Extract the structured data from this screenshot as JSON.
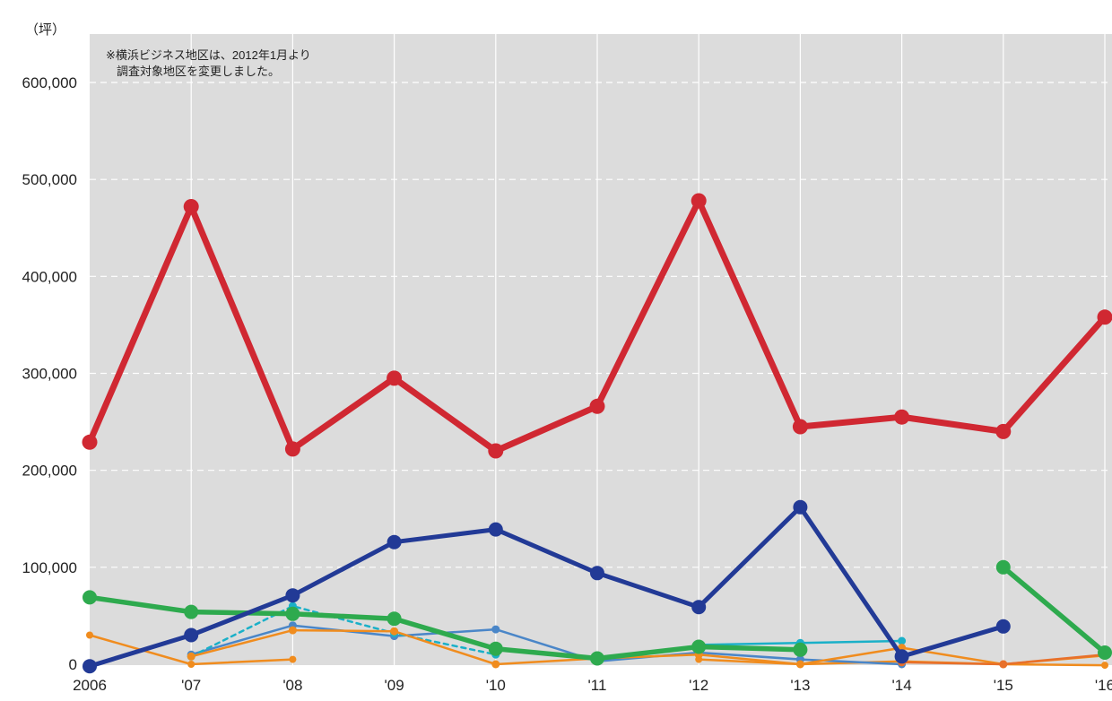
{
  "chart_data": {
    "type": "line",
    "unit_label": "（坪）",
    "note": [
      "※横浜ビジネス地区は、2012年1月より",
      "調査対象地区を変更しました。"
    ],
    "x_tick_labels": [
      "2006",
      "'07",
      "'08",
      "'09",
      "'10",
      "'11",
      "'12",
      "'13",
      "'14",
      "'15",
      "'16"
    ],
    "y_ticks": [
      0,
      100000,
      200000,
      300000,
      400000,
      500000,
      600000
    ],
    "y_tick_labels": [
      "0",
      "100,000",
      "200,000",
      "300,000",
      "400,000",
      "500,000",
      "600,000"
    ],
    "ylim": [
      0,
      600000
    ],
    "grid": true,
    "plot_background": "#dcdcdc",
    "series": [
      {
        "color": "#f08c1e",
        "width": 2.5,
        "marker": 4,
        "dashed": false,
        "values": [
          30000,
          0,
          5000,
          null,
          0,
          null,
          5000,
          0,
          3000,
          0,
          -1000
        ]
      },
      {
        "color": "#4a86c8",
        "width": 2.5,
        "marker": 4.5,
        "dashed": false,
        "values": [
          null,
          10000,
          40000,
          29000,
          36000,
          3000,
          12000,
          5000,
          0,
          null,
          null
        ]
      },
      {
        "color": "#1ab0c8",
        "width": 2.5,
        "marker": 4.5,
        "dashed": true,
        "values": [
          null,
          8000,
          60000,
          32000,
          10000,
          null,
          20000,
          null,
          null,
          null,
          null
        ]
      },
      {
        "color": "#1ab0c8",
        "width": 2.5,
        "marker": 4.5,
        "dashed": false,
        "values": [
          null,
          null,
          null,
          null,
          null,
          null,
          20000,
          22000,
          24000,
          null,
          null
        ]
      },
      {
        "color": "#f08c1e",
        "width": 2.5,
        "marker": 4.5,
        "dashed": false,
        "values": [
          null,
          8000,
          35000,
          34000,
          0,
          6000,
          10000,
          0,
          17000,
          0,
          9000
        ]
      },
      {
        "color": "#e8702a",
        "width": 2.5,
        "marker": 4.5,
        "dashed": false,
        "values": [
          null,
          null,
          null,
          null,
          null,
          null,
          null,
          null,
          2000,
          0,
          10000
        ]
      },
      {
        "color": "#2eaa4e",
        "width": 5.5,
        "marker": 8,
        "dashed": false,
        "values": [
          69000,
          54000,
          52000,
          47000,
          16000,
          6000,
          18000,
          15000,
          null,
          100000,
          12000
        ]
      },
      {
        "color": "#223a96",
        "width": 5,
        "marker": 8,
        "dashed": false,
        "values": [
          -2000,
          30000,
          71000,
          126000,
          139000,
          94000,
          59000,
          162000,
          8000,
          39000,
          null
        ]
      },
      {
        "color": "#d02832",
        "width": 7,
        "marker": 8.5,
        "dashed": false,
        "values": [
          229000,
          472000,
          222000,
          295000,
          220000,
          266000,
          478000,
          245000,
          255000,
          240000,
          358000
        ]
      }
    ]
  }
}
